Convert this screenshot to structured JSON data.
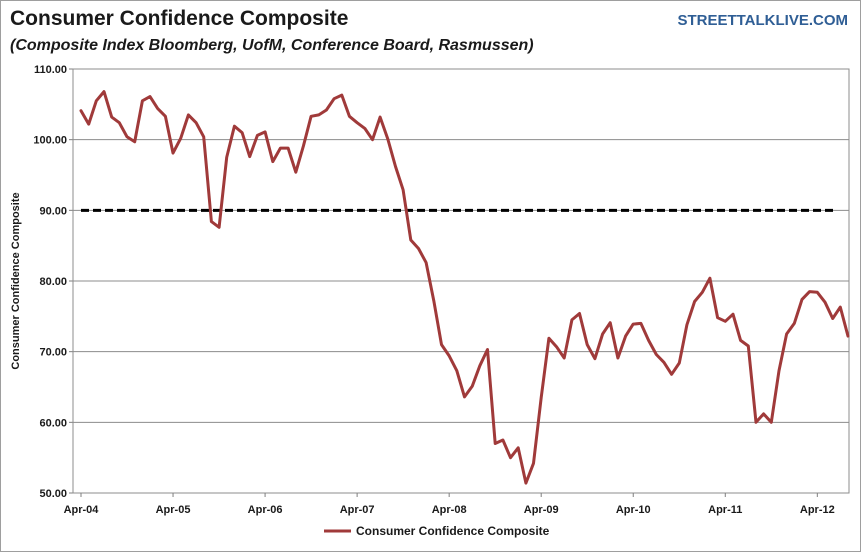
{
  "header": {
    "title": "Consumer Confidence Composite",
    "subtitle": "(Composite Index Bloomberg, UofM, Conference Board, Rasmussen)",
    "brand": "STREETTALKLIVE.COM"
  },
  "chart_data": {
    "type": "line",
    "ylabel": "Consumer Confidence Composite",
    "xlabel": "",
    "ylim": [
      50,
      110
    ],
    "yticks": [
      "110.00",
      "100.00",
      "90.00",
      "80.00",
      "70.00",
      "60.00",
      "50.00"
    ],
    "xticks": [
      "Apr-04",
      "Apr-05",
      "Apr-06",
      "Apr-07",
      "Apr-08",
      "Apr-09",
      "Apr-10",
      "Apr-11",
      "Apr-12"
    ],
    "grid": "horizontal",
    "legend": "bottom",
    "colors": {
      "series": "#a03a3a",
      "reference": "#000000",
      "grid": "#8c8c8c"
    },
    "series": [
      {
        "name": "Consumer Confidence Composite",
        "x_start": "Apr-04",
        "frequency": "monthly",
        "values": [
          104.1,
          102.2,
          105.5,
          106.8,
          103.2,
          102.4,
          100.4,
          99.7,
          105.5,
          106.1,
          104.4,
          103.3,
          98.1,
          100.2,
          103.5,
          102.4,
          100.4,
          88.4,
          87.6,
          97.5,
          101.9,
          101.0,
          97.6,
          100.6,
          101.1,
          96.9,
          98.8,
          98.8,
          95.4,
          99.1,
          103.3,
          103.5,
          104.2,
          105.8,
          106.3,
          103.3,
          102.4,
          101.6,
          100.0,
          103.2,
          100.1,
          96.2,
          92.9,
          85.8,
          84.6,
          82.6,
          77.2,
          71.0,
          69.4,
          67.3,
          63.6,
          65.1,
          68.0,
          70.3,
          57.0,
          57.5,
          55.0,
          56.4,
          51.4,
          54.2,
          63.5,
          71.9,
          70.7,
          69.1,
          74.5,
          75.4,
          71.0,
          69.0,
          72.5,
          74.1,
          69.1,
          72.2,
          73.9,
          74.0,
          71.6,
          69.6,
          68.5,
          66.8,
          68.4,
          73.8,
          77.1,
          78.4,
          80.4,
          74.8,
          74.3,
          75.3,
          71.6,
          70.8,
          60.0,
          61.2,
          60.0,
          67.3,
          72.5,
          74.0,
          77.4,
          78.5,
          78.4,
          77.0,
          74.7,
          76.3,
          72.2
        ]
      }
    ],
    "reference_line": {
      "value": 90,
      "style": "dashed"
    }
  }
}
